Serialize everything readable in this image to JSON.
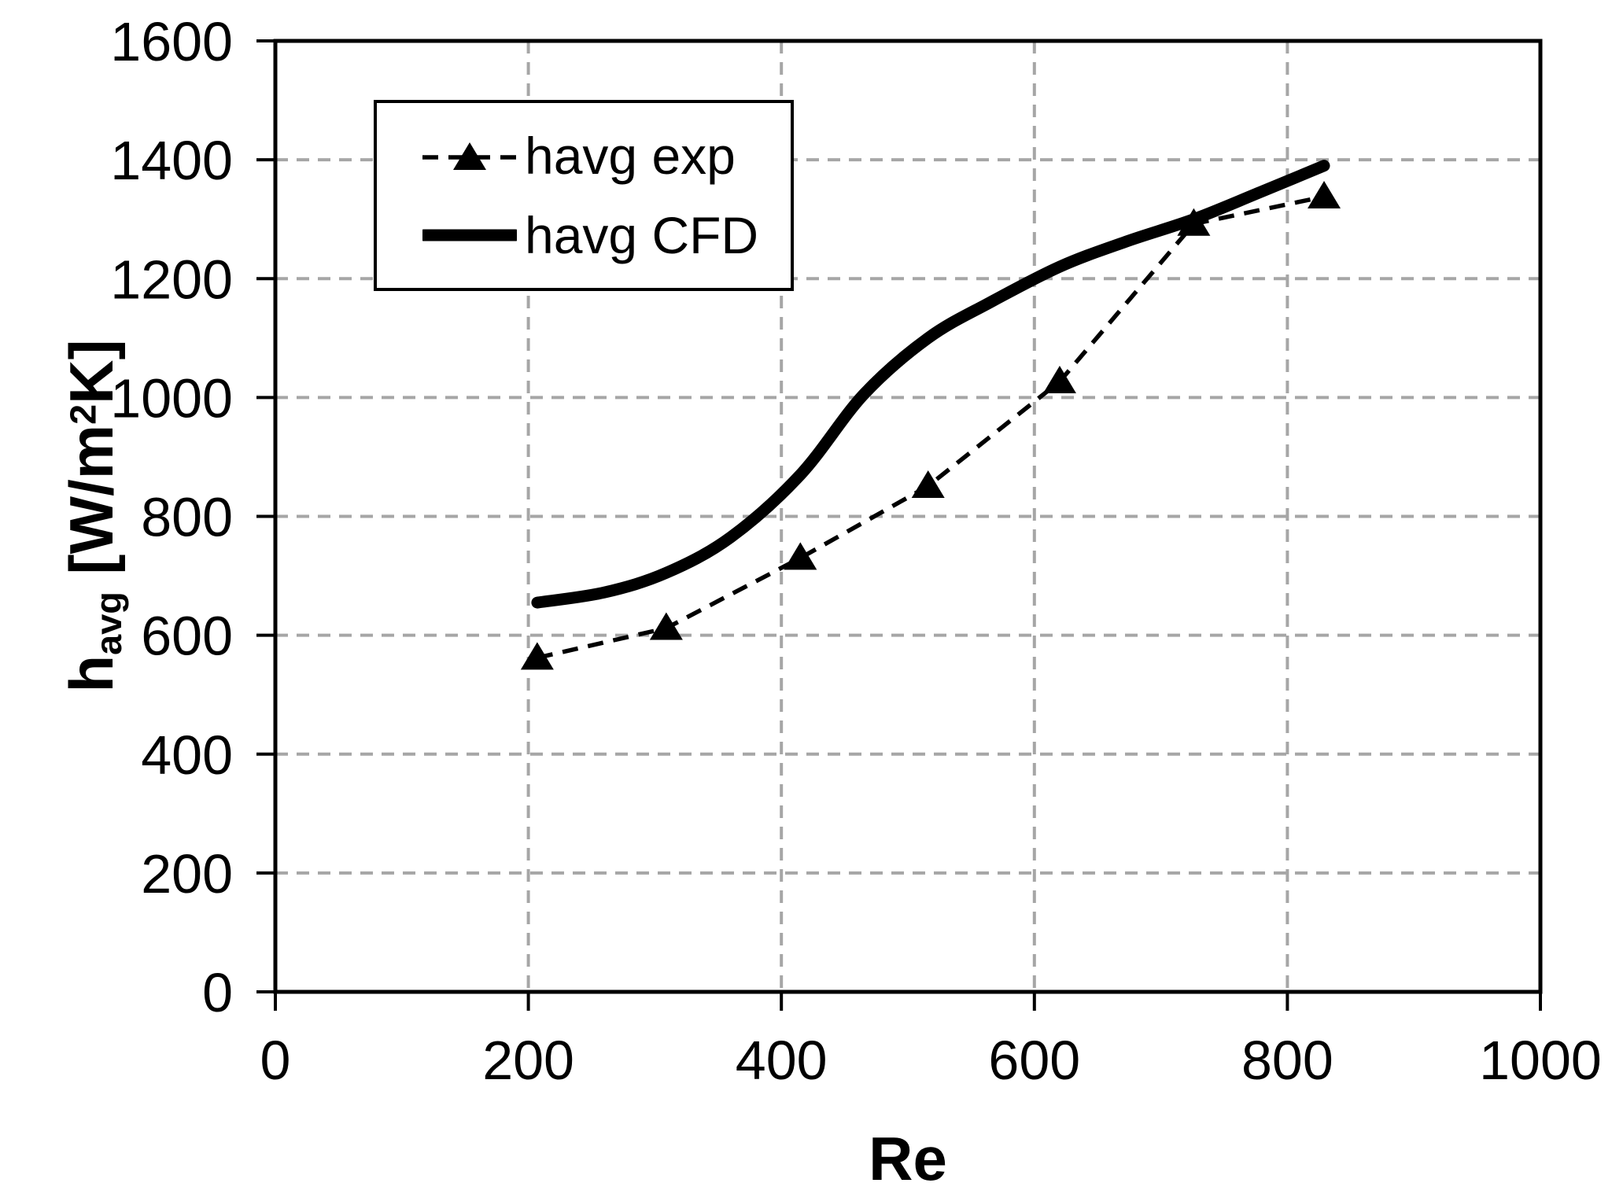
{
  "chart_data": {
    "type": "line",
    "title": "",
    "xlabel": "Re",
    "ylabel": "havg [W/m2K]",
    "ylabel_parts": {
      "main": "h",
      "sub": "avg",
      "mid": " [W/m",
      "sup": "2",
      "end": "K]"
    },
    "xlim": [
      0,
      1000
    ],
    "ylim": [
      0,
      1600
    ],
    "xticks": [
      0,
      200,
      400,
      600,
      800,
      1000
    ],
    "yticks": [
      0,
      200,
      400,
      600,
      800,
      1000,
      1200,
      1400,
      1600
    ],
    "grid": true,
    "legend_position": "top-left",
    "series": [
      {
        "name": "havg exp",
        "style": "dashed line with filled triangle markers",
        "x": [
          207,
          309,
          415,
          516,
          620,
          726,
          829
        ],
        "y": [
          562,
          612,
          730,
          851,
          1027,
          1292,
          1338
        ]
      },
      {
        "name": "havg CFD",
        "style": "thick solid smooth line",
        "x": [
          207,
          309,
          415,
          516,
          620,
          726,
          829
        ],
        "y": [
          655,
          705,
          870,
          1100,
          1220,
          1300,
          1390
        ],
        "curve_samples": [
          [
            207,
            655
          ],
          [
            260,
            672
          ],
          [
            309,
            705
          ],
          [
            360,
            765
          ],
          [
            415,
            870
          ],
          [
            465,
            1005
          ],
          [
            516,
            1100
          ],
          [
            565,
            1160
          ],
          [
            620,
            1220
          ],
          [
            672,
            1262
          ],
          [
            726,
            1300
          ],
          [
            778,
            1345
          ],
          [
            829,
            1390
          ]
        ]
      }
    ],
    "colors": {
      "series": "#000000",
      "grid": "#a6a6a6",
      "background": "#ffffff"
    }
  }
}
